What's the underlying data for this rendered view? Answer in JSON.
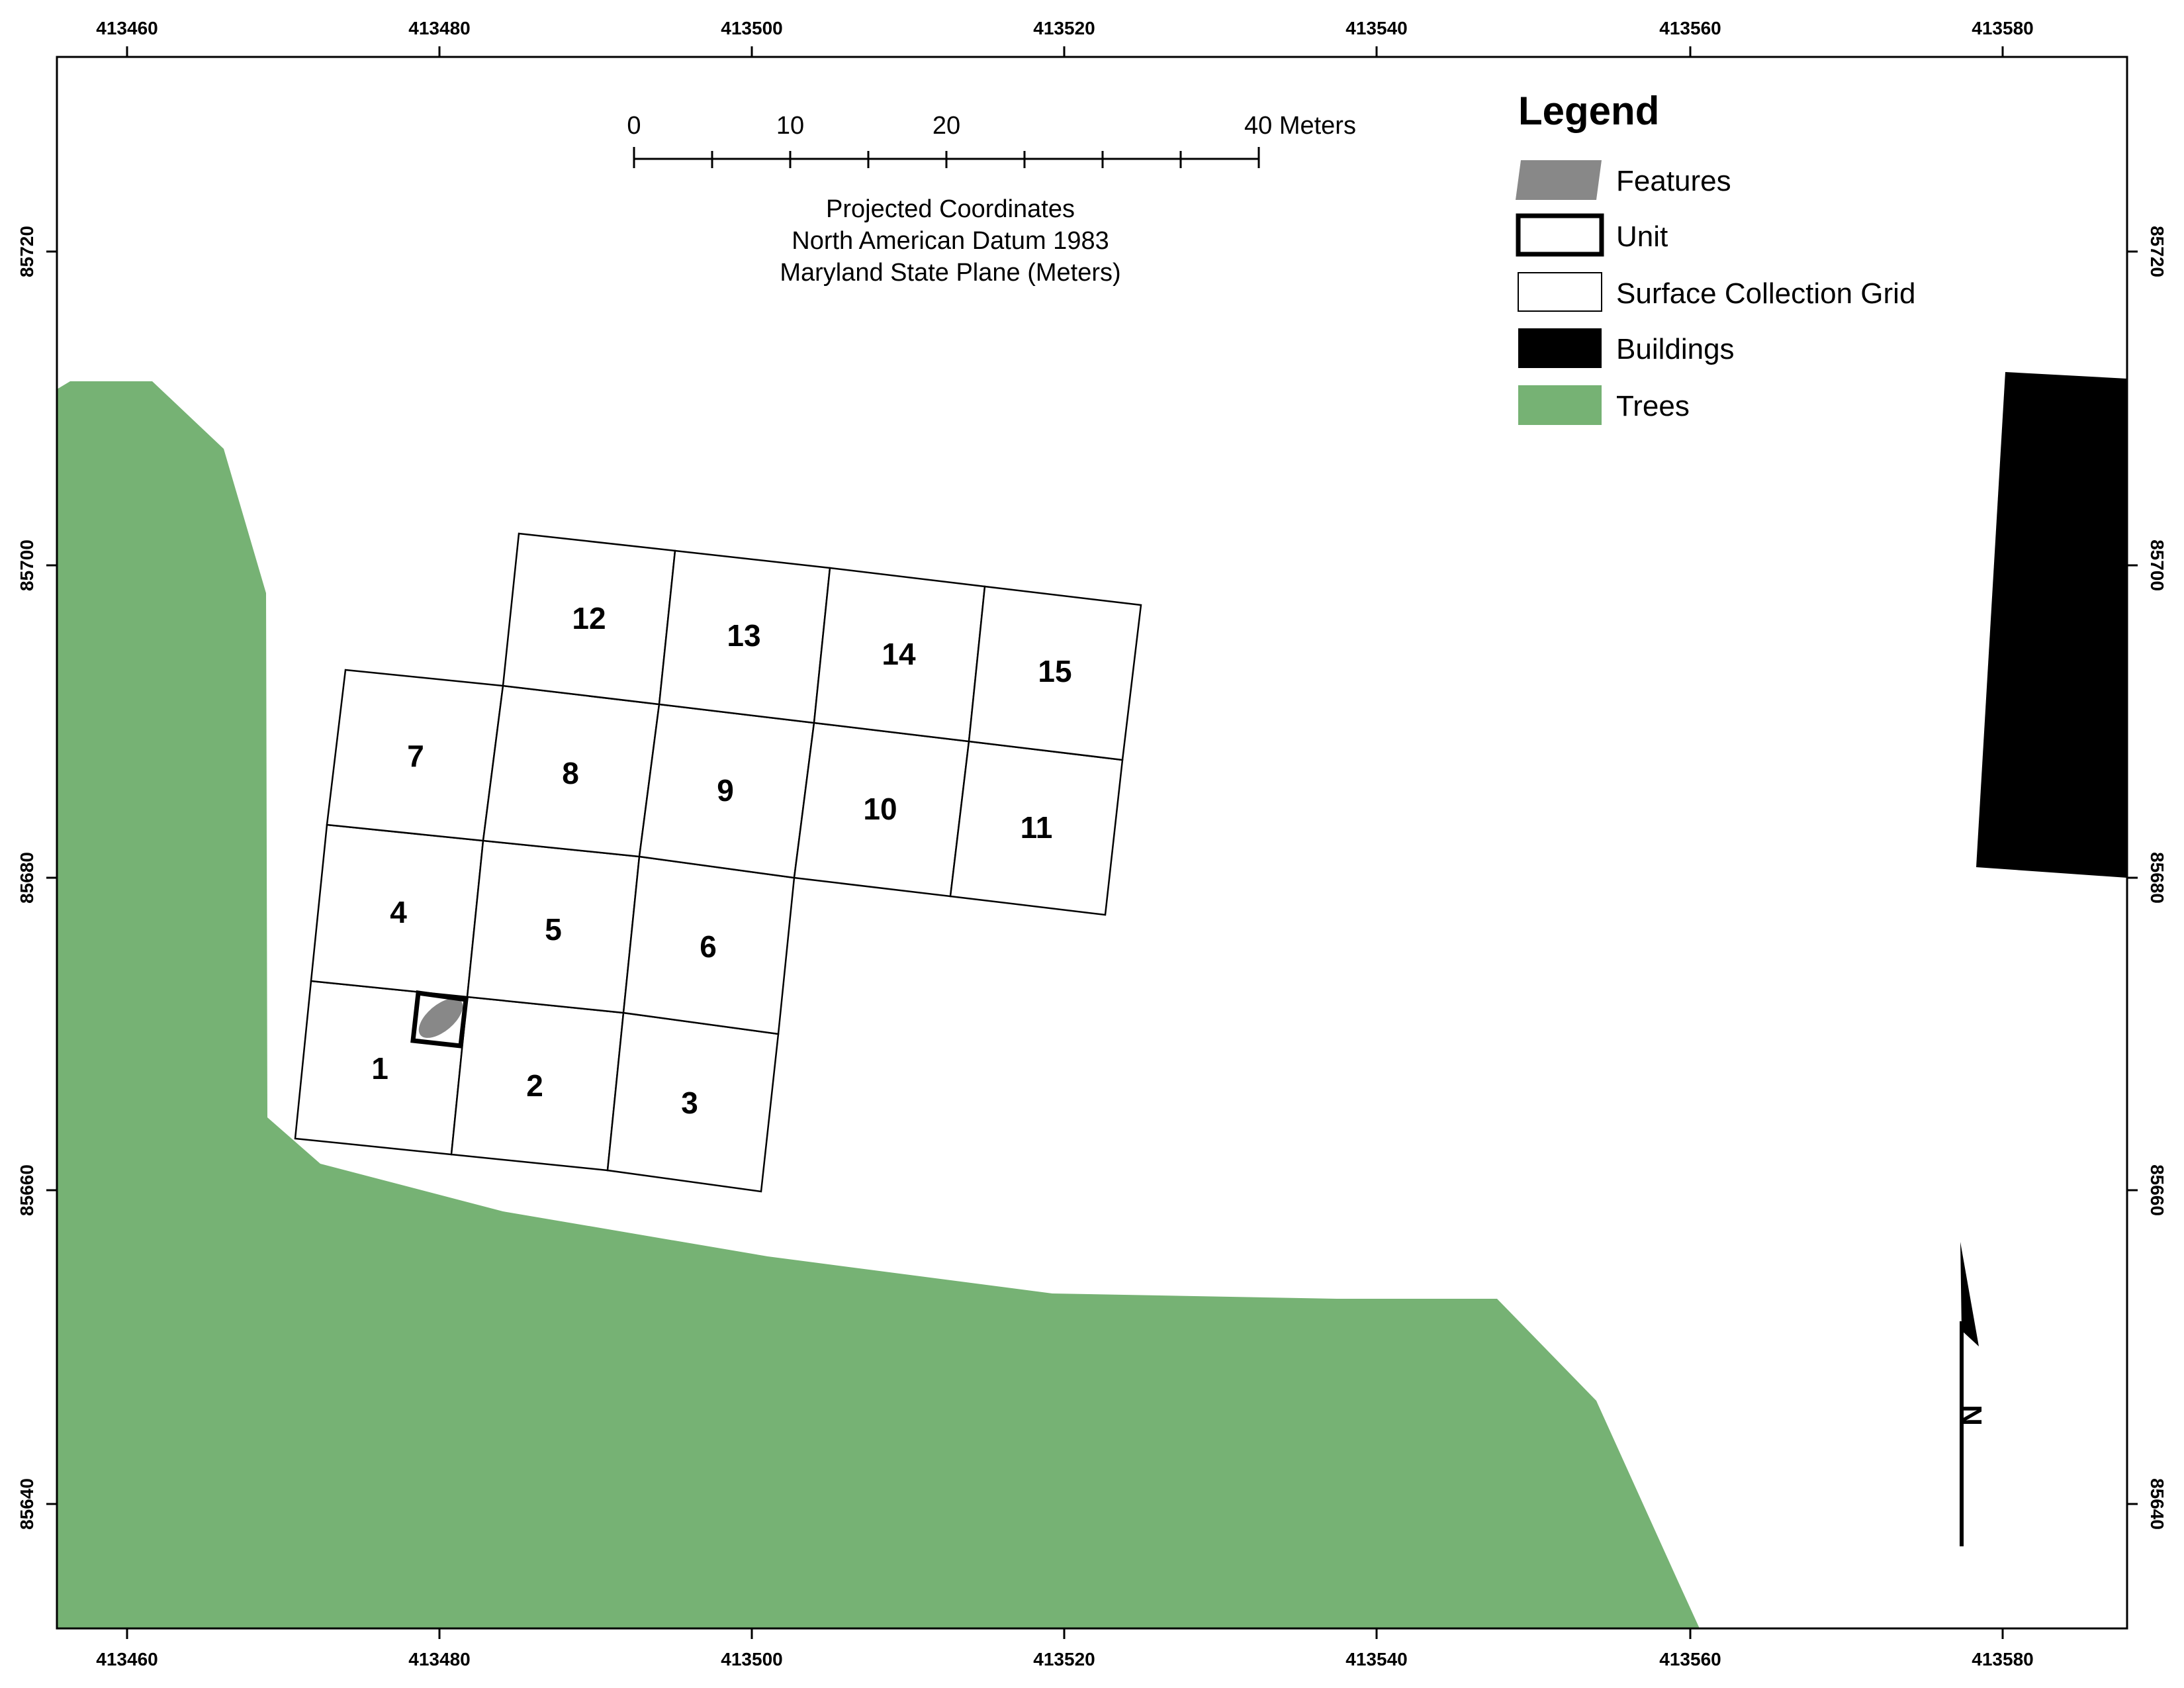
{
  "map": {
    "x_ticks": [
      "413460",
      "413480",
      "413500",
      "413520",
      "413540",
      "413560",
      "413580"
    ],
    "y_ticks": [
      "85720",
      "85700",
      "85680",
      "85660",
      "85640"
    ],
    "colors": {
      "trees": "#76b274",
      "buildings": "#000000",
      "features": "#888888",
      "grid_fill": "#ffffff",
      "frame": "#000000"
    }
  },
  "scale_bar": {
    "labels": [
      "0",
      "10",
      "20",
      "40 Meters"
    ]
  },
  "projection": {
    "line1": "Projected Coordinates",
    "line2": "North American Datum 1983",
    "line3": "Maryland State Plane (Meters)"
  },
  "legend": {
    "title": "Legend",
    "items": [
      {
        "label": "Features",
        "icon": "features-swatch"
      },
      {
        "label": "Unit",
        "icon": "unit-swatch"
      },
      {
        "label": "Surface Collection Grid",
        "icon": "grid-swatch"
      },
      {
        "label": "Buildings",
        "icon": "buildings-swatch"
      },
      {
        "label": "Trees",
        "icon": "trees-swatch"
      }
    ]
  },
  "grid_units": [
    "1",
    "2",
    "3",
    "4",
    "5",
    "6",
    "7",
    "8",
    "9",
    "10",
    "11",
    "12",
    "13",
    "14",
    "15"
  ],
  "north_arrow": {
    "label": "N",
    "icon": "north-arrow-icon"
  }
}
